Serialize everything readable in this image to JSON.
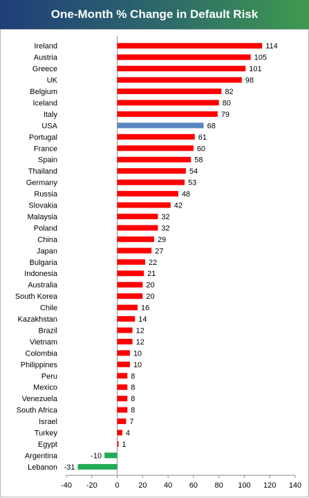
{
  "chart_data": {
    "type": "bar",
    "orientation": "horizontal",
    "title": "One-Month % Change in Default Risk",
    "categories": [
      "Ireland",
      "Austria",
      "Greece",
      "UK",
      "Belgium",
      "Iceland",
      "Italy",
      "USA",
      "Portugal",
      "France",
      "Spain",
      "Thailand",
      "Germany",
      "Russia",
      "Slovakia",
      "Malaysia",
      "Poland",
      "China",
      "Japan",
      "Bulgaria",
      "Indonesia",
      "Australia",
      "South Korea",
      "Chile",
      "Kazakhstan",
      "Brazil",
      "Vietnam",
      "Colombia",
      "Philippines",
      "Peru",
      "Mexico",
      "Venezuela",
      "South Africa",
      "Israel",
      "Turkey",
      "Egypt",
      "Argentina",
      "Lebanon"
    ],
    "values": [
      114,
      105,
      101,
      98,
      82,
      80,
      79,
      68,
      61,
      60,
      58,
      54,
      53,
      48,
      42,
      32,
      32,
      29,
      27,
      22,
      21,
      20,
      20,
      16,
      14,
      12,
      12,
      10,
      10,
      8,
      8,
      8,
      8,
      7,
      4,
      1,
      -10,
      -31
    ],
    "xlim": [
      -40,
      140
    ],
    "xticks": [
      -40,
      -20,
      0,
      20,
      40,
      60,
      80,
      100,
      120,
      140
    ],
    "xlabel": "",
    "ylabel": "",
    "grid": false,
    "legend": "none",
    "colors": {
      "positive": "#ff0000",
      "highlight": "#5b87c0",
      "negative": "#1faa54",
      "axis": "#8c8c8c",
      "border": "#b5b5b5",
      "title_bg_start": "#1f3e78",
      "title_bg_end": "#3f9a4e",
      "title_text": "#ffffff"
    },
    "highlight_category": "USA"
  }
}
